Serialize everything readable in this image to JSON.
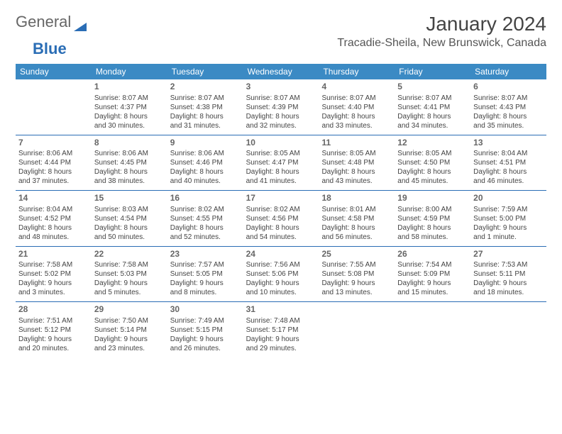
{
  "logo": {
    "text1": "General",
    "text2": "Blue"
  },
  "title": "January 2024",
  "location": "Tracadie-Sheila, New Brunswick, Canada",
  "colors": {
    "header_bg": "#3b8ac4",
    "header_text": "#ffffff",
    "week_border": "#2a6db5",
    "text": "#444444",
    "logo_blue": "#2a6db5"
  },
  "weekdays": [
    "Sunday",
    "Monday",
    "Tuesday",
    "Wednesday",
    "Thursday",
    "Friday",
    "Saturday"
  ],
  "weeks": [
    [
      {
        "n": "",
        "lines": [
          "",
          "",
          "",
          ""
        ]
      },
      {
        "n": "1",
        "lines": [
          "Sunrise: 8:07 AM",
          "Sunset: 4:37 PM",
          "Daylight: 8 hours",
          "and 30 minutes."
        ]
      },
      {
        "n": "2",
        "lines": [
          "Sunrise: 8:07 AM",
          "Sunset: 4:38 PM",
          "Daylight: 8 hours",
          "and 31 minutes."
        ]
      },
      {
        "n": "3",
        "lines": [
          "Sunrise: 8:07 AM",
          "Sunset: 4:39 PM",
          "Daylight: 8 hours",
          "and 32 minutes."
        ]
      },
      {
        "n": "4",
        "lines": [
          "Sunrise: 8:07 AM",
          "Sunset: 4:40 PM",
          "Daylight: 8 hours",
          "and 33 minutes."
        ]
      },
      {
        "n": "5",
        "lines": [
          "Sunrise: 8:07 AM",
          "Sunset: 4:41 PM",
          "Daylight: 8 hours",
          "and 34 minutes."
        ]
      },
      {
        "n": "6",
        "lines": [
          "Sunrise: 8:07 AM",
          "Sunset: 4:43 PM",
          "Daylight: 8 hours",
          "and 35 minutes."
        ]
      }
    ],
    [
      {
        "n": "7",
        "lines": [
          "Sunrise: 8:06 AM",
          "Sunset: 4:44 PM",
          "Daylight: 8 hours",
          "and 37 minutes."
        ]
      },
      {
        "n": "8",
        "lines": [
          "Sunrise: 8:06 AM",
          "Sunset: 4:45 PM",
          "Daylight: 8 hours",
          "and 38 minutes."
        ]
      },
      {
        "n": "9",
        "lines": [
          "Sunrise: 8:06 AM",
          "Sunset: 4:46 PM",
          "Daylight: 8 hours",
          "and 40 minutes."
        ]
      },
      {
        "n": "10",
        "lines": [
          "Sunrise: 8:05 AM",
          "Sunset: 4:47 PM",
          "Daylight: 8 hours",
          "and 41 minutes."
        ]
      },
      {
        "n": "11",
        "lines": [
          "Sunrise: 8:05 AM",
          "Sunset: 4:48 PM",
          "Daylight: 8 hours",
          "and 43 minutes."
        ]
      },
      {
        "n": "12",
        "lines": [
          "Sunrise: 8:05 AM",
          "Sunset: 4:50 PM",
          "Daylight: 8 hours",
          "and 45 minutes."
        ]
      },
      {
        "n": "13",
        "lines": [
          "Sunrise: 8:04 AM",
          "Sunset: 4:51 PM",
          "Daylight: 8 hours",
          "and 46 minutes."
        ]
      }
    ],
    [
      {
        "n": "14",
        "lines": [
          "Sunrise: 8:04 AM",
          "Sunset: 4:52 PM",
          "Daylight: 8 hours",
          "and 48 minutes."
        ]
      },
      {
        "n": "15",
        "lines": [
          "Sunrise: 8:03 AM",
          "Sunset: 4:54 PM",
          "Daylight: 8 hours",
          "and 50 minutes."
        ]
      },
      {
        "n": "16",
        "lines": [
          "Sunrise: 8:02 AM",
          "Sunset: 4:55 PM",
          "Daylight: 8 hours",
          "and 52 minutes."
        ]
      },
      {
        "n": "17",
        "lines": [
          "Sunrise: 8:02 AM",
          "Sunset: 4:56 PM",
          "Daylight: 8 hours",
          "and 54 minutes."
        ]
      },
      {
        "n": "18",
        "lines": [
          "Sunrise: 8:01 AM",
          "Sunset: 4:58 PM",
          "Daylight: 8 hours",
          "and 56 minutes."
        ]
      },
      {
        "n": "19",
        "lines": [
          "Sunrise: 8:00 AM",
          "Sunset: 4:59 PM",
          "Daylight: 8 hours",
          "and 58 minutes."
        ]
      },
      {
        "n": "20",
        "lines": [
          "Sunrise: 7:59 AM",
          "Sunset: 5:00 PM",
          "Daylight: 9 hours",
          "and 1 minute."
        ]
      }
    ],
    [
      {
        "n": "21",
        "lines": [
          "Sunrise: 7:58 AM",
          "Sunset: 5:02 PM",
          "Daylight: 9 hours",
          "and 3 minutes."
        ]
      },
      {
        "n": "22",
        "lines": [
          "Sunrise: 7:58 AM",
          "Sunset: 5:03 PM",
          "Daylight: 9 hours",
          "and 5 minutes."
        ]
      },
      {
        "n": "23",
        "lines": [
          "Sunrise: 7:57 AM",
          "Sunset: 5:05 PM",
          "Daylight: 9 hours",
          "and 8 minutes."
        ]
      },
      {
        "n": "24",
        "lines": [
          "Sunrise: 7:56 AM",
          "Sunset: 5:06 PM",
          "Daylight: 9 hours",
          "and 10 minutes."
        ]
      },
      {
        "n": "25",
        "lines": [
          "Sunrise: 7:55 AM",
          "Sunset: 5:08 PM",
          "Daylight: 9 hours",
          "and 13 minutes."
        ]
      },
      {
        "n": "26",
        "lines": [
          "Sunrise: 7:54 AM",
          "Sunset: 5:09 PM",
          "Daylight: 9 hours",
          "and 15 minutes."
        ]
      },
      {
        "n": "27",
        "lines": [
          "Sunrise: 7:53 AM",
          "Sunset: 5:11 PM",
          "Daylight: 9 hours",
          "and 18 minutes."
        ]
      }
    ],
    [
      {
        "n": "28",
        "lines": [
          "Sunrise: 7:51 AM",
          "Sunset: 5:12 PM",
          "Daylight: 9 hours",
          "and 20 minutes."
        ]
      },
      {
        "n": "29",
        "lines": [
          "Sunrise: 7:50 AM",
          "Sunset: 5:14 PM",
          "Daylight: 9 hours",
          "and 23 minutes."
        ]
      },
      {
        "n": "30",
        "lines": [
          "Sunrise: 7:49 AM",
          "Sunset: 5:15 PM",
          "Daylight: 9 hours",
          "and 26 minutes."
        ]
      },
      {
        "n": "31",
        "lines": [
          "Sunrise: 7:48 AM",
          "Sunset: 5:17 PM",
          "Daylight: 9 hours",
          "and 29 minutes."
        ]
      },
      {
        "n": "",
        "lines": [
          "",
          "",
          "",
          ""
        ]
      },
      {
        "n": "",
        "lines": [
          "",
          "",
          "",
          ""
        ]
      },
      {
        "n": "",
        "lines": [
          "",
          "",
          "",
          ""
        ]
      }
    ]
  ]
}
